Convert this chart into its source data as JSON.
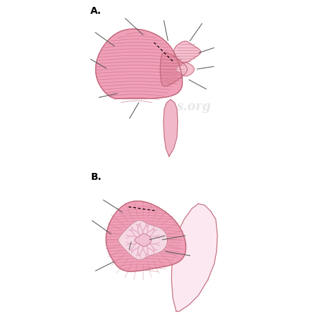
{
  "background_color": "#ffffff",
  "label_A": "A.",
  "label_B": "B.",
  "pink_main": "#f0a0b8",
  "pink_light": "#f5c0d0",
  "pink_dark": "#c06878",
  "pink_medium": "#e890a8",
  "pink_pale": "#fce8f0",
  "pink_stem": "#f0b8c8",
  "pink_folia": "#d07890",
  "line_color": "#555555",
  "dashed_color": "#222222",
  "watermark_color": "#d8d8d8"
}
